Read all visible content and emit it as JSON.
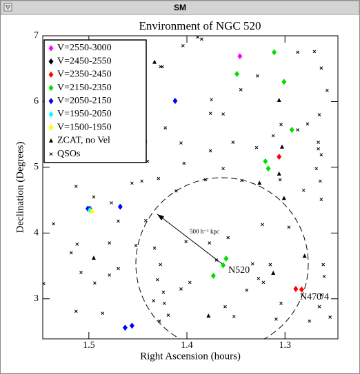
{
  "window_title": "SM",
  "chart_data": {
    "type": "scatter",
    "title": "Environment of NGC 520",
    "x_label": "Right Ascension (hours)",
    "y_label": "Declination (Degrees)",
    "xlim": [
      1.547,
      1.246
    ],
    "ylim": [
      2.39,
      7
    ],
    "xticks": [
      1.5,
      1.4,
      1.3
    ],
    "yticks": [
      3,
      4,
      5,
      6,
      7
    ],
    "legend": "upper left",
    "series": [
      {
        "name": "V=2550-3000",
        "color": "#ff00ff",
        "marker": "diamond",
        "x": [
          1.346
        ],
        "y": [
          6.69
        ]
      },
      {
        "name": "V=2450-2550",
        "color": "#000000",
        "marker": "diamond",
        "x": [],
        "y": []
      },
      {
        "name": "V=2350-2450",
        "color": "#ff0000",
        "marker": "diamond",
        "x": [
          1.306,
          1.289,
          1.283
        ],
        "y": [
          5.16,
          3.15,
          3.14
        ]
      },
      {
        "name": "V=2150-2350",
        "color": "#00e000",
        "marker": "diamond",
        "x": [
          1.311,
          1.349,
          1.301,
          1.293,
          1.32,
          1.317,
          1.36,
          1.363,
          1.373
        ],
        "y": [
          6.75,
          6.42,
          6.3,
          5.57,
          5.09,
          4.98,
          3.61,
          3.51,
          3.35
        ]
      },
      {
        "name": "V=2050-2150",
        "color": "#0000ff",
        "marker": "diamond",
        "x": [
          1.412,
          1.501,
          1.499,
          1.468,
          1.463,
          1.456
        ],
        "y": [
          6.01,
          4.37,
          4.37,
          4.4,
          2.56,
          2.59
        ]
      },
      {
        "name": "V=1950-2050",
        "color": "#00ffff",
        "marker": "diamond",
        "x": [
          1.499
        ],
        "y": [
          4.35
        ]
      },
      {
        "name": "V=1500-1950",
        "color": "#ffff00",
        "marker": "diamond",
        "x": [
          1.497
        ],
        "y": [
          4.33
        ]
      },
      {
        "name": "ZCAT, no Vel",
        "color": "#000000",
        "marker": "triangle",
        "x": [
          1.433,
          1.306,
          1.303,
          1.326,
          1.306,
          1.301,
          1.495,
          1.312,
          1.378,
          1.28
        ],
        "y": [
          6.6,
          6.02,
          5.31,
          4.76,
          4.9,
          4.53,
          3.62,
          3.39,
          2.74,
          3.65
        ]
      },
      {
        "name": "QSOs",
        "color": "#000000",
        "marker": "x",
        "x": [
          1.389,
          1.385,
          1.404,
          1.427,
          1.425,
          1.444,
          1.462,
          1.27,
          1.263,
          1.287,
          1.257,
          1.265,
          1.277,
          1.266,
          1.266,
          1.263,
          1.268,
          1.264,
          1.263,
          1.287,
          1.422,
          1.442,
          1.406,
          1.44,
          1.403,
          1.353,
          1.376,
          1.329,
          1.304,
          1.312,
          1.375,
          1.376,
          1.363,
          1.345,
          1.328,
          1.454,
          1.456,
          1.446,
          1.429,
          1.411,
          1.381,
          1.363,
          1.344,
          1.305,
          1.281,
          1.513,
          1.495,
          1.477,
          1.536,
          1.512,
          1.518,
          1.479,
          1.479,
          1.494,
          1.508,
          1.452,
          1.442,
          1.433,
          1.427,
          1.43,
          1.424,
          1.434,
          1.423,
          1.428,
          1.419,
          1.406,
          1.397,
          1.401,
          1.377,
          1.358,
          1.37,
          1.333,
          1.339,
          1.322,
          1.327,
          1.361,
          1.315,
          1.352,
          1.309,
          1.304,
          1.323,
          1.296,
          1.261,
          1.26,
          1.263,
          1.265,
          1.254,
          1.275,
          1.513,
          1.486,
          1.546,
          1.47,
          1.47
        ],
        "y": [
          6.98,
          6.95,
          6.85,
          6.53,
          6.53,
          6.31,
          6.11,
          6.76,
          6.51,
          6.75,
          6.17,
          5.8,
          5.66,
          5.38,
          5.28,
          5.19,
          4.98,
          4.79,
          4.51,
          5.57,
          5.6,
          5.39,
          5.37,
          5.09,
          5.06,
          5.38,
          5.25,
          5.3,
          5.65,
          5.48,
          6.03,
          5.82,
          5.81,
          6.18,
          6.39,
          5.17,
          4.76,
          4.79,
          4.83,
          4.64,
          4.81,
          4.98,
          4.8,
          4.81,
          4.65,
          4.71,
          4.55,
          4.46,
          4.14,
          3.83,
          3.7,
          3.85,
          3.36,
          3.24,
          3.4,
          3.81,
          4.19,
          3.77,
          3.52,
          3.29,
          3.1,
          2.97,
          2.93,
          2.66,
          2.75,
          3.15,
          3.25,
          3.87,
          3.85,
          3.93,
          3.59,
          3.53,
          3.13,
          3.25,
          3.31,
          2.88,
          3.52,
          2.73,
          2.69,
          2.93,
          4.13,
          4.09,
          3.52,
          3.34,
          3.06,
          2.88,
          2.72,
          2.66,
          2.81,
          2.78,
          3.23,
          3.46,
          4.18
        ]
      }
    ],
    "annotations": [
      {
        "text": "N520"
      },
      {
        "text": "N470/4"
      },
      {
        "text": "500 h⁻¹ kpc"
      }
    ]
  }
}
